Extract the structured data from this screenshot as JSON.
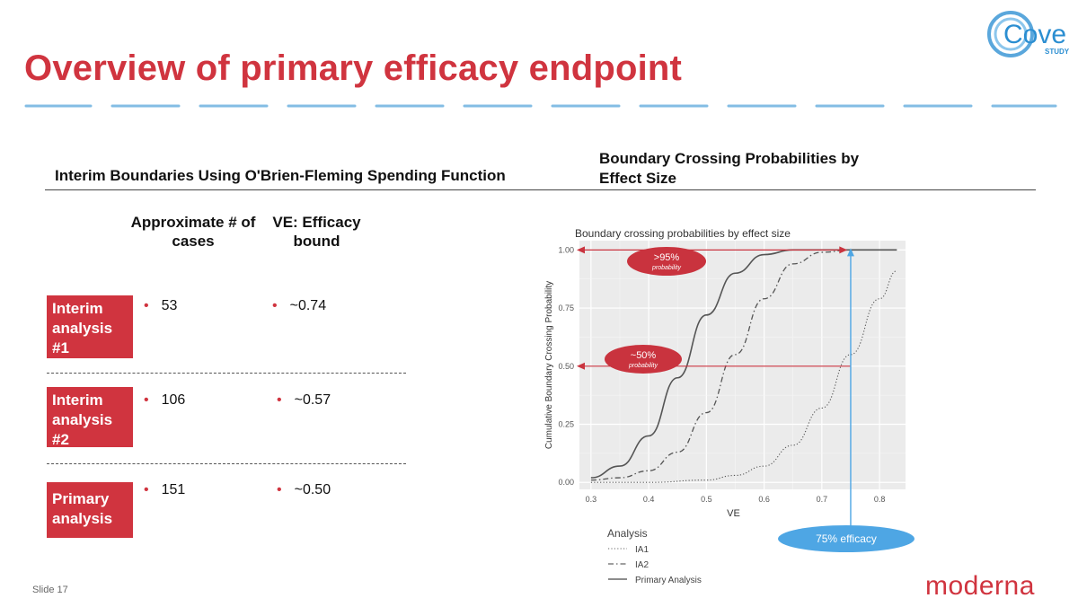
{
  "slide": {
    "title": "Overview of primary efficacy endpoint",
    "slide_number": "Slide 17",
    "brand_logo": "moderna",
    "study_logo_word": "Cove",
    "study_logo_sub": "STUDY",
    "accent_color": "#d0343f",
    "dash_color": "#5aa7dc"
  },
  "left": {
    "header": "Interim Boundaries Using O'Brien-Fleming Spending Function",
    "col_cases": "Approximate # of cases",
    "col_ve": "VE: Efficacy bound",
    "rows": [
      {
        "label": "Interim analysis #1",
        "cases": "53",
        "bound": "~0.74"
      },
      {
        "label": "Interim analysis #2",
        "cases": "106",
        "bound": "~0.57"
      },
      {
        "label": "Primary analysis",
        "cases": "151",
        "bound": "~0.50"
      }
    ]
  },
  "right": {
    "header": "Boundary Crossing Probabilities by Effect Size"
  },
  "chart_data": {
    "type": "line",
    "title": "Boundary crossing probabilities by effect size",
    "xlabel": "VE",
    "ylabel": "Cumulative Boundary Crossing Probability",
    "xlim": [
      0.3,
      0.83
    ],
    "ylim": [
      0,
      1
    ],
    "xticks": [
      "0.3",
      "0.4",
      "0.5",
      "0.6",
      "0.7",
      "0.8"
    ],
    "yticks": [
      "0.00",
      "0.25",
      "0.50",
      "0.75",
      "1.00"
    ],
    "legend_title": "Analysis",
    "series": [
      {
        "name": "IA1",
        "style": "dotted",
        "x": [
          0.3,
          0.4,
          0.5,
          0.55,
          0.6,
          0.65,
          0.7,
          0.75,
          0.8,
          0.83
        ],
        "y": [
          0.0,
          0.0,
          0.01,
          0.03,
          0.07,
          0.16,
          0.32,
          0.55,
          0.79,
          0.91
        ]
      },
      {
        "name": "IA2",
        "style": "dashdot",
        "x": [
          0.3,
          0.35,
          0.4,
          0.45,
          0.5,
          0.55,
          0.6,
          0.65,
          0.7,
          0.75,
          0.8,
          0.83
        ],
        "y": [
          0.01,
          0.02,
          0.05,
          0.13,
          0.3,
          0.55,
          0.79,
          0.94,
          0.99,
          1.0,
          1.0,
          1.0
        ]
      },
      {
        "name": "Primary Analysis",
        "style": "solid",
        "x": [
          0.3,
          0.35,
          0.4,
          0.45,
          0.5,
          0.55,
          0.6,
          0.65,
          0.7,
          0.75,
          0.8,
          0.83
        ],
        "y": [
          0.02,
          0.07,
          0.2,
          0.45,
          0.72,
          0.9,
          0.98,
          1.0,
          1.0,
          1.0,
          1.0,
          1.0
        ]
      }
    ],
    "annotations": [
      {
        "text": ">95%",
        "sub": "probability",
        "y": 1.0,
        "x_end": 0.735
      },
      {
        "text": "~50%",
        "sub": "probability",
        "y": 0.5,
        "x_end": 0.75
      },
      {
        "text": "75% efficacy",
        "x": 0.75
      }
    ]
  }
}
